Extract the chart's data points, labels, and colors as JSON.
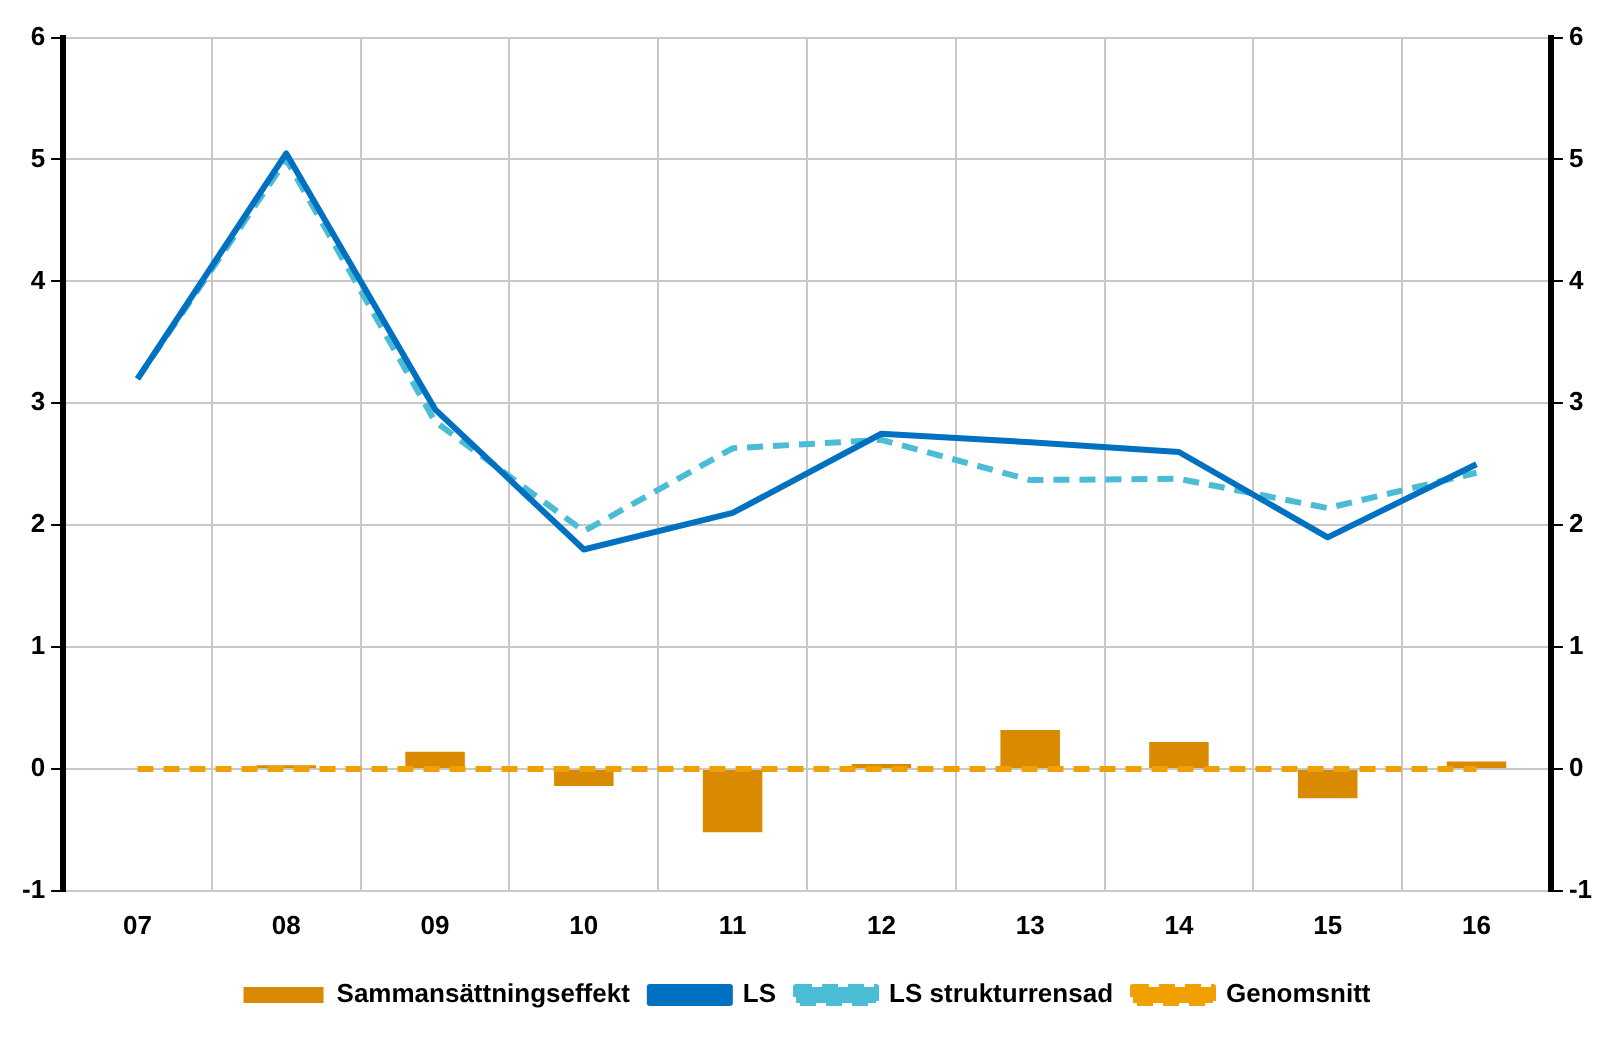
{
  "chart_data": {
    "type": "bar",
    "categories": [
      "07",
      "08",
      "09",
      "10",
      "11",
      "12",
      "13",
      "14",
      "15",
      "16"
    ],
    "series": [
      {
        "name": "Sammansättningseffekt",
        "color": "#d98a00",
        "values": [
          0,
          0.03,
          0.14,
          -0.14,
          -0.52,
          0.04,
          0.32,
          0.22,
          -0.24,
          0.06
        ]
      },
      {
        "name": "LS",
        "type": "line",
        "color": "#0070c0",
        "line_style": "solid",
        "values": [
          3.2,
          5.05,
          2.95,
          1.8,
          2.1,
          2.75,
          2.68,
          2.6,
          1.9,
          2.5
        ]
      },
      {
        "name": "LS strukturrensad",
        "type": "line",
        "color": "#4bbcd6",
        "line_style": "dashed",
        "values": [
          3.2,
          5.0,
          2.85,
          1.95,
          2.63,
          2.7,
          2.37,
          2.38,
          2.14,
          2.43
        ]
      },
      {
        "name": "Genomsnitt",
        "type": "line",
        "color": "#f0a000",
        "line_style": "dashed",
        "values": [
          0,
          0,
          0,
          0,
          0,
          0,
          0,
          0,
          0,
          0
        ]
      }
    ],
    "ylim": [
      -1,
      6
    ],
    "yticks": [
      -1,
      0,
      1,
      2,
      3,
      4,
      5,
      6
    ],
    "y2lim": [
      -1,
      6
    ],
    "y2ticks": [
      -1,
      0,
      1,
      2,
      3,
      4,
      5,
      6
    ],
    "grid": true,
    "legend": "bottom",
    "marker": "none"
  }
}
